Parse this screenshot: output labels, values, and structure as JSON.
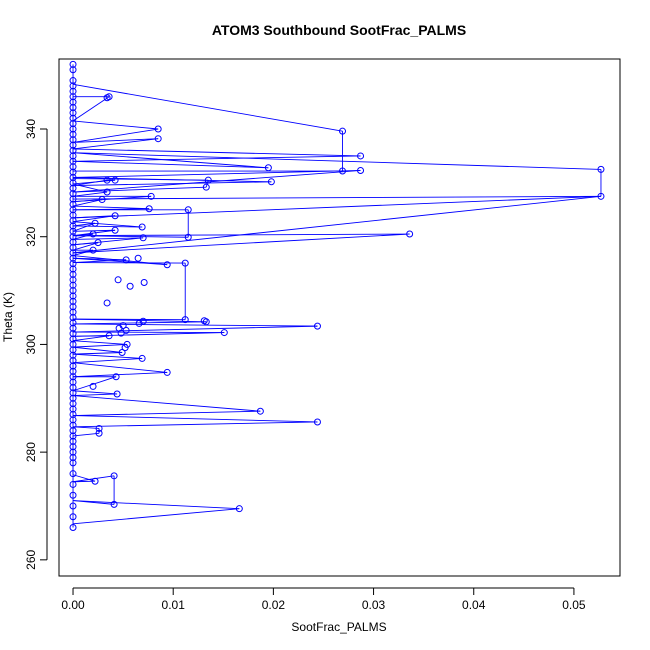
{
  "chart_data": {
    "type": "line",
    "title": "ATOM3 Southbound SootFrac_PALMS",
    "xlabel": "SootFrac_PALMS",
    "ylabel": "Theta (K)",
    "xlim": [
      -0.0014,
      0.0546
    ],
    "ylim": [
      257,
      353
    ],
    "x_ticks": [
      0.0,
      0.01,
      0.02,
      0.03,
      0.04,
      0.05
    ],
    "x_tick_labels": [
      "0.00",
      "0.01",
      "0.02",
      "0.03",
      "0.04",
      "0.05"
    ],
    "y_ticks": [
      260,
      280,
      300,
      320,
      340
    ],
    "y_tick_labels": [
      "260",
      "280",
      "300",
      "320",
      "340"
    ],
    "grid": false,
    "marker": "open-circle",
    "line_color": "#0000ff",
    "series": [
      {
        "values_x": [
          0.0,
          0.0,
          0.0,
          0.0,
          0.0,
          0.0,
          0.0,
          0.0,
          0.0,
          0.0,
          0.0,
          0.0,
          0.0,
          0.0,
          0.0,
          0.0,
          0.0,
          0.0,
          0.0,
          0.0,
          0.0,
          0.0,
          0.0,
          0.0,
          0.0,
          0.0,
          0.0,
          0.0,
          0.0,
          0.0,
          0.0,
          0.0,
          0.0,
          0.0,
          0.0,
          0.0,
          0.0,
          0.0,
          0.0,
          0.0,
          0.0,
          0.0,
          0.0,
          0.0,
          0.0,
          0.0,
          0.0,
          0.0,
          0.0,
          0.0,
          0.0,
          0.0,
          0.0,
          0.0,
          0.0,
          0.0,
          0.0,
          0.0,
          0.0,
          0.0,
          0.0,
          0.0,
          0.0,
          0.0,
          0.0,
          0.0,
          0.0,
          0.0,
          0.0,
          0.0,
          0.0,
          0.0,
          0.0,
          0.0,
          0.0,
          0.0,
          0.0,
          0.0,
          0.0,
          0.0
        ],
        "values_y": [
          352,
          351,
          349,
          348,
          347,
          346,
          345,
          344,
          343,
          342,
          341,
          340,
          339,
          338,
          337,
          336,
          335,
          334,
          333,
          332,
          331,
          330,
          329,
          328,
          327,
          326,
          325,
          324,
          323,
          322,
          321,
          320,
          319,
          318,
          317,
          316,
          315,
          314,
          313,
          312,
          311,
          310,
          309,
          308,
          307,
          306,
          305,
          304,
          303,
          302,
          301,
          300,
          299,
          298,
          297,
          296,
          295,
          294,
          293,
          292,
          291,
          290,
          289,
          288,
          287,
          286,
          285,
          284,
          283,
          282,
          281,
          280,
          279,
          278,
          276,
          274,
          272,
          270,
          268,
          266
        ]
      },
      {
        "path": [
          [
            0.0,
            348.3
          ],
          [
            0.0269,
            339.6
          ],
          [
            0.0269,
            332.2
          ],
          [
            0.0,
            332.2
          ],
          [
            0.0,
            346.0
          ],
          [
            0.0036,
            346.0
          ],
          [
            0.0,
            341.5
          ],
          [
            0.0085,
            340.0
          ],
          [
            0.0,
            337.5
          ],
          [
            0.0085,
            338.2
          ],
          [
            0.0,
            336.3
          ],
          [
            0.0287,
            335.0
          ],
          [
            0.0,
            334.0
          ],
          [
            0.0195,
            332.8
          ],
          [
            0.0,
            335.6
          ],
          [
            0.0527,
            332.5
          ],
          [
            0.0527,
            327.5
          ],
          [
            0.0,
            327.0
          ],
          [
            0.0,
            330.8
          ],
          [
            0.0135,
            330.5
          ],
          [
            0.0133,
            329.2
          ],
          [
            0.0,
            328.3
          ],
          [
            0.0287,
            332.3
          ],
          [
            0.0,
            331.0
          ],
          [
            0.0198,
            330.2
          ],
          [
            0.0,
            329.5
          ],
          [
            0.0034,
            330.5
          ],
          [
            0.0042,
            330.5
          ],
          [
            0.0,
            329.8
          ],
          [
            0.0034,
            328.3
          ],
          [
            0.0,
            327.5
          ],
          [
            0.0078,
            327.5
          ],
          [
            0.0,
            326.5
          ],
          [
            0.0029,
            326.9
          ],
          [
            0.0,
            325.7
          ],
          [
            0.0076,
            325.2
          ],
          [
            0.0,
            325.0
          ],
          [
            0.0115,
            325.0
          ],
          [
            0.0115,
            319.9
          ],
          [
            0.0,
            320.2
          ],
          [
            0.0336,
            320.5
          ],
          [
            0.0,
            317.0
          ],
          [
            0.0527,
            327.5
          ],
          [
            0.0,
            323.5
          ],
          [
            0.0042,
            323.9
          ],
          [
            0.0,
            322.8
          ],
          [
            0.0069,
            321.8
          ],
          [
            0.0,
            322.0
          ],
          [
            0.0022,
            322.5
          ],
          [
            0.0,
            321.0
          ],
          [
            0.0042,
            321.2
          ],
          [
            0.0,
            320.2
          ],
          [
            0.002,
            320.5
          ],
          [
            0.0,
            319.5
          ],
          [
            0.007,
            319.8
          ],
          [
            0.0,
            318.5
          ],
          [
            0.0025,
            318.9
          ],
          [
            0.0,
            317.5
          ],
          [
            0.002,
            317.5
          ],
          [
            0.0,
            316.5
          ],
          [
            0.0094,
            314.8
          ],
          [
            0.0,
            316.0
          ],
          [
            0.0053,
            315.7
          ],
          [
            0.0,
            315.2
          ],
          [
            0.0112,
            315.1
          ],
          [
            0.0112,
            304.6
          ],
          [
            0.0,
            304.7
          ],
          [
            0.0133,
            304.2
          ],
          [
            0.0,
            303.8
          ],
          [
            0.0244,
            303.4
          ],
          [
            0.0,
            302.3
          ],
          [
            0.0151,
            302.2
          ],
          [
            0.0,
            301.5
          ],
          [
            0.0036,
            301.6
          ],
          [
            0.0,
            300.7
          ],
          [
            0.0054,
            300.0
          ],
          [
            0.0,
            299.5
          ],
          [
            0.0049,
            298.5
          ],
          [
            0.0,
            298.2
          ],
          [
            0.0069,
            297.4
          ],
          [
            0.0,
            296.6
          ],
          [
            0.0094,
            294.8
          ],
          [
            0.0,
            294.0
          ],
          [
            0.0043,
            294.0
          ],
          [
            0.0,
            291.4
          ],
          [
            0.0044,
            290.8
          ],
          [
            0.0,
            290.5
          ],
          [
            0.0187,
            287.6
          ],
          [
            0.0,
            286.8
          ],
          [
            0.0244,
            285.6
          ],
          [
            0.0,
            284.7
          ],
          [
            0.0026,
            284.4
          ],
          [
            0.0026,
            283.5
          ],
          [
            0.0,
            283.0
          ],
          [
            0.0,
            279.0
          ],
          [
            0.0,
            275.8
          ],
          [
            0.0022,
            274.6
          ],
          [
            0.0,
            274.5
          ],
          [
            0.0041,
            275.6
          ],
          [
            0.0041,
            270.3
          ],
          [
            0.0,
            271.0
          ],
          [
            0.0166,
            269.5
          ],
          [
            0.0,
            266.7
          ]
        ]
      },
      {
        "markers": [
          [
            0.0269,
            339.6
          ],
          [
            0.0269,
            332.2
          ],
          [
            0.0287,
            335.0
          ],
          [
            0.0287,
            332.3
          ],
          [
            0.0527,
            332.5
          ],
          [
            0.0527,
            327.5
          ],
          [
            0.0195,
            332.8
          ],
          [
            0.0198,
            330.2
          ],
          [
            0.0085,
            340.0
          ],
          [
            0.0085,
            338.2
          ],
          [
            0.0036,
            346.0
          ],
          [
            0.0034,
            345.8
          ],
          [
            0.0135,
            330.5
          ],
          [
            0.0133,
            329.2
          ],
          [
            0.0078,
            327.5
          ],
          [
            0.0076,
            325.2
          ],
          [
            0.0034,
            330.5
          ],
          [
            0.0042,
            330.5
          ],
          [
            0.0034,
            328.3
          ],
          [
            0.0029,
            326.9
          ],
          [
            0.0115,
            325.0
          ],
          [
            0.0115,
            319.9
          ],
          [
            0.0336,
            320.5
          ],
          [
            0.0042,
            323.9
          ],
          [
            0.0069,
            321.8
          ],
          [
            0.007,
            319.8
          ],
          [
            0.0022,
            322.5
          ],
          [
            0.0042,
            321.2
          ],
          [
            0.002,
            320.5
          ],
          [
            0.0025,
            318.9
          ],
          [
            0.002,
            317.5
          ],
          [
            0.0053,
            315.7
          ],
          [
            0.0094,
            314.8
          ],
          [
            0.0112,
            315.1
          ],
          [
            0.0065,
            316.0
          ],
          [
            0.0045,
            312.0
          ],
          [
            0.0071,
            311.5
          ],
          [
            0.0057,
            310.8
          ],
          [
            0.0034,
            307.7
          ],
          [
            0.0112,
            304.6
          ],
          [
            0.0133,
            304.2
          ],
          [
            0.0131,
            304.4
          ],
          [
            0.0244,
            303.4
          ],
          [
            0.0151,
            302.2
          ],
          [
            0.0066,
            303.9
          ],
          [
            0.007,
            304.3
          ],
          [
            0.005,
            303.5
          ],
          [
            0.0046,
            303.0
          ],
          [
            0.0053,
            302.6
          ],
          [
            0.0048,
            302.1
          ],
          [
            0.0036,
            301.6
          ],
          [
            0.0054,
            300.0
          ],
          [
            0.0052,
            299.4
          ],
          [
            0.0049,
            298.5
          ],
          [
            0.0069,
            297.4
          ],
          [
            0.0094,
            294.8
          ],
          [
            0.0043,
            294.0
          ],
          [
            0.0044,
            290.8
          ],
          [
            0.0187,
            287.6
          ],
          [
            0.0244,
            285.6
          ],
          [
            0.0026,
            284.4
          ],
          [
            0.0026,
            283.5
          ],
          [
            0.0022,
            274.6
          ],
          [
            0.0041,
            275.6
          ],
          [
            0.0041,
            270.3
          ],
          [
            0.0166,
            269.5
          ],
          [
            0.002,
            292.2
          ]
        ]
      }
    ]
  }
}
